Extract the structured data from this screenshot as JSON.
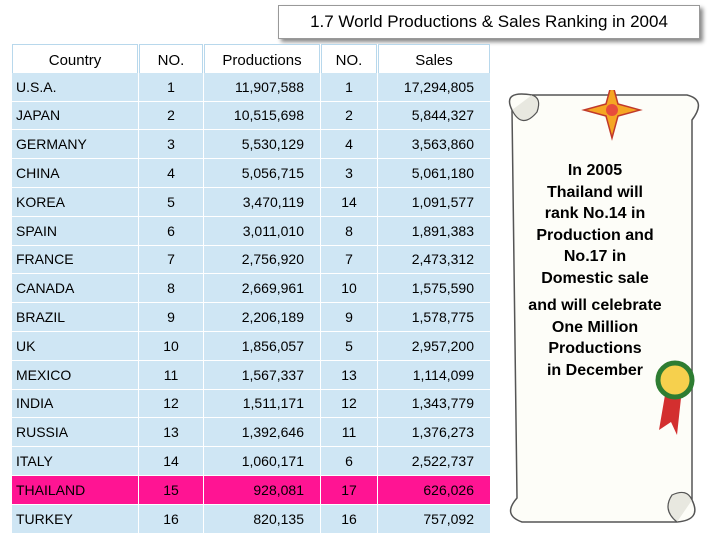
{
  "header": {
    "title": "1.7 World Productions & Sales Ranking in 2004"
  },
  "table": {
    "columns": [
      "Country",
      "NO.",
      "Productions",
      "NO.",
      "Sales"
    ],
    "rows": [
      [
        "U.S.A.",
        "1",
        "11,907,588",
        "1",
        "17,294,805"
      ],
      [
        "JAPAN",
        "2",
        "10,515,698",
        "2",
        "5,844,327"
      ],
      [
        "GERMANY",
        "3",
        "5,530,129",
        "4",
        "3,563,860"
      ],
      [
        "CHINA",
        "4",
        "5,056,715",
        "3",
        "5,061,180"
      ],
      [
        "KOREA",
        "5",
        "3,470,119",
        "14",
        "1,091,577"
      ],
      [
        "SPAIN",
        "6",
        "3,011,010",
        "8",
        "1,891,383"
      ],
      [
        "FRANCE",
        "7",
        "2,756,920",
        "7",
        "2,473,312"
      ],
      [
        "CANADA",
        "8",
        "2,669,961",
        "10",
        "1,575,590"
      ],
      [
        "BRAZIL",
        "9",
        "2,206,189",
        "9",
        "1,578,775"
      ],
      [
        "UK",
        "10",
        "1,856,057",
        "5",
        "2,957,200"
      ],
      [
        "MEXICO",
        "11",
        "1,567,337",
        "13",
        "1,114,099"
      ],
      [
        "INDIA",
        "12",
        "1,511,171",
        "12",
        "1,343,779"
      ],
      [
        "RUSSIA",
        "13",
        "1,392,646",
        "11",
        "1,376,273"
      ],
      [
        "ITALY",
        "14",
        "1,060,171",
        "6",
        "2,522,737"
      ],
      [
        "THAILAND",
        "15",
        "928,081",
        "17",
        "626,026"
      ],
      [
        "TURKEY",
        "16",
        "820,135",
        "16",
        "757,092"
      ]
    ],
    "highlight_row": 14
  },
  "note": {
    "lines": [
      "In 2005",
      "Thailand will",
      "rank No.14 in",
      "Production and",
      "No.17 in",
      "Domestic sale",
      "and will celebrate",
      "One Million",
      "Productions",
      "in December"
    ]
  }
}
